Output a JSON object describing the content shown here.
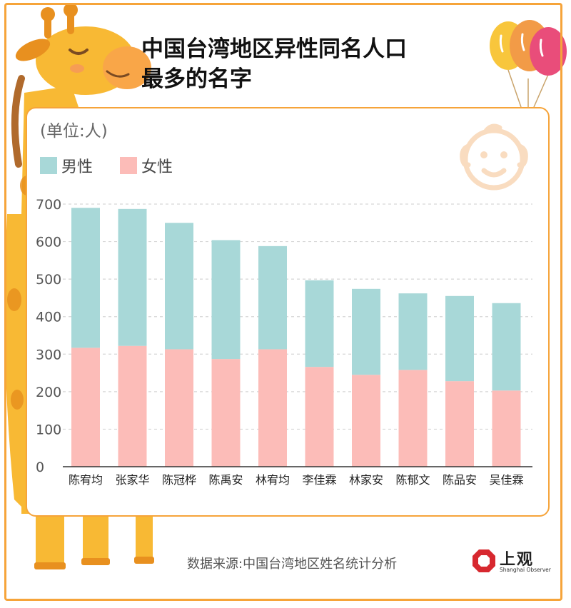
{
  "title_line1": "中国台湾地区异性同名人口",
  "title_line2": "最多的名字",
  "colors": {
    "male": "#a8d8d8",
    "female": "#fcbcb8",
    "border": "#f6a43a",
    "giraffe": "#f8b934",
    "giraffe_dark": "#e8901f"
  },
  "icons": {
    "mascot": "giraffe-icon",
    "balloons": "balloon-icon",
    "face": "baby-face-icon",
    "logo": "shanghai-observer-logo-icon"
  },
  "chart_data": {
    "type": "bar",
    "stacked": true,
    "unit": "(单位:人)",
    "categories": [
      "陈宥均",
      "张家华",
      "陈冠桦",
      "陈禹安",
      "林宥均",
      "李佳霖",
      "林家安",
      "陈郁文",
      "陈品安",
      "吴佳霖"
    ],
    "series": [
      {
        "name": "女性",
        "color": "#fcbcb8",
        "values": [
          317,
          322,
          313,
          287,
          313,
          266,
          245,
          258,
          228,
          203
        ]
      },
      {
        "name": "男性",
        "color": "#a8d8d8",
        "values": [
          373,
          365,
          337,
          317,
          275,
          231,
          229,
          204,
          227,
          233
        ]
      }
    ],
    "legend_order": [
      "男性",
      "女性"
    ],
    "legend_position": "top-left",
    "ylim": [
      0,
      700
    ],
    "yticks": [
      0,
      100,
      200,
      300,
      400,
      500,
      600,
      700
    ],
    "grid": true
  },
  "source": "数据来源:中国台湾地区姓名统计分析",
  "logo": {
    "name": "上观",
    "sub": "Shanghai Observer"
  }
}
